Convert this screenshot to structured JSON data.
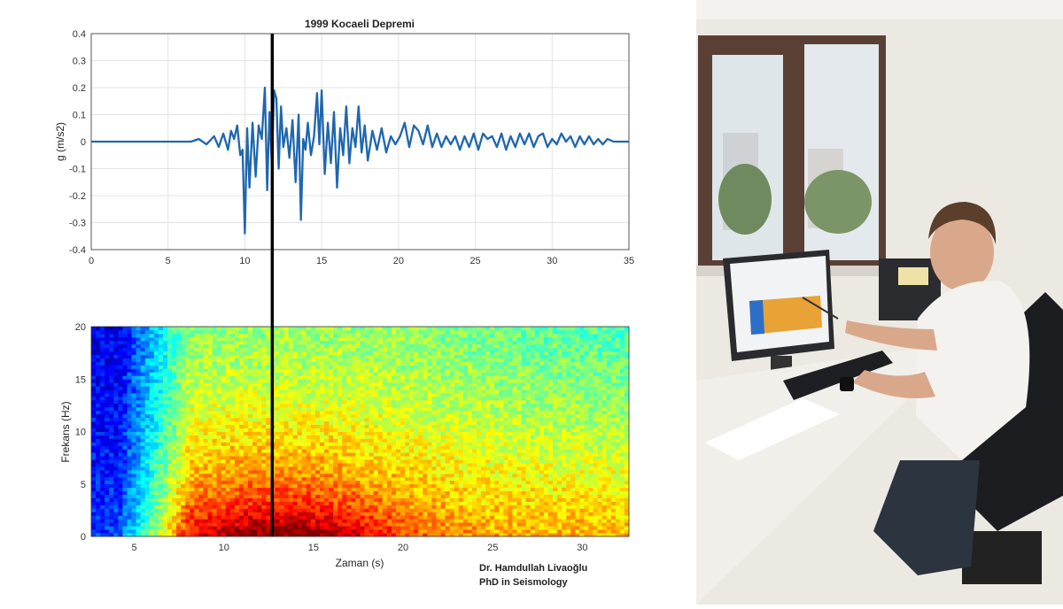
{
  "chart_data": [
    {
      "type": "line",
      "title": "1999 Kocaeli Depremi",
      "xlabel": "",
      "ylabel": "g (m/s2)",
      "xlim": [
        0,
        35
      ],
      "ylim": [
        -0.4,
        0.4
      ],
      "xticks": [
        0,
        5,
        10,
        15,
        20,
        25,
        30,
        35
      ],
      "yticks": [
        -0.4,
        -0.3,
        -0.2,
        -0.1,
        0,
        0.1,
        0.2,
        0.3,
        0.4
      ],
      "grid": true,
      "series": [
        {
          "color": "#1f67ae",
          "x": [
            0,
            6.5,
            7.0,
            7.5,
            8.0,
            8.3,
            8.6,
            8.9,
            9.1,
            9.3,
            9.5,
            9.7,
            9.85,
            10.0,
            10.15,
            10.3,
            10.5,
            10.7,
            10.9,
            11.1,
            11.3,
            11.45,
            11.6,
            11.75,
            11.9,
            12.05,
            12.2,
            12.35,
            12.5,
            12.7,
            12.9,
            13.1,
            13.3,
            13.5,
            13.65,
            13.8,
            13.95,
            14.1,
            14.3,
            14.5,
            14.7,
            14.85,
            15.0,
            15.2,
            15.4,
            15.6,
            15.8,
            16.0,
            16.2,
            16.4,
            16.6,
            16.8,
            17.0,
            17.2,
            17.4,
            17.6,
            17.8,
            18.0,
            18.3,
            18.6,
            18.9,
            19.2,
            19.5,
            19.8,
            20.1,
            20.4,
            20.7,
            21.0,
            21.3,
            21.6,
            21.9,
            22.2,
            22.5,
            22.8,
            23.1,
            23.4,
            23.7,
            24.0,
            24.3,
            24.6,
            24.9,
            25.2,
            25.5,
            25.8,
            26.1,
            26.4,
            26.7,
            27.0,
            27.3,
            27.6,
            27.9,
            28.2,
            28.5,
            28.8,
            29.1,
            29.4,
            29.7,
            30.0,
            30.3,
            30.6,
            30.9,
            31.2,
            31.5,
            31.8,
            32.1,
            32.4,
            32.7,
            33.0,
            33.3,
            33.6,
            34.0,
            34.5,
            35.0
          ],
          "y": [
            0.0,
            0.0,
            0.01,
            -0.01,
            0.02,
            -0.02,
            0.03,
            -0.03,
            0.04,
            0.01,
            0.06,
            -0.05,
            -0.03,
            -0.34,
            0.05,
            -0.17,
            0.07,
            -0.13,
            0.06,
            0.01,
            0.2,
            -0.18,
            0.11,
            -0.08,
            0.19,
            0.16,
            -0.1,
            0.13,
            -0.02,
            0.05,
            -0.06,
            0.08,
            -0.15,
            0.1,
            -0.29,
            0.01,
            -0.03,
            0.07,
            -0.05,
            0.02,
            0.18,
            -0.01,
            0.19,
            -0.12,
            0.07,
            -0.08,
            0.11,
            -0.17,
            0.05,
            -0.05,
            0.13,
            -0.08,
            0.05,
            -0.02,
            0.13,
            -0.04,
            0.06,
            -0.07,
            0.04,
            -0.03,
            0.05,
            -0.04,
            0.02,
            -0.01,
            0.02,
            0.07,
            -0.02,
            0.06,
            0.04,
            -0.01,
            0.06,
            -0.02,
            0.03,
            -0.02,
            0.02,
            -0.01,
            0.02,
            -0.03,
            0.02,
            -0.02,
            0.03,
            -0.03,
            0.03,
            0.01,
            0.02,
            -0.02,
            0.03,
            -0.03,
            0.02,
            -0.02,
            0.03,
            -0.01,
            0.03,
            -0.02,
            0.02,
            0.03,
            -0.02,
            0.01,
            -0.01,
            0.03,
            0.0,
            0.02,
            -0.02,
            0.02,
            -0.01,
            0.02,
            -0.01,
            0.01,
            -0.01,
            0.01,
            0.0,
            0.0,
            0.0
          ]
        }
      ],
      "marker_x": 12.2
    },
    {
      "type": "heatmap",
      "title": "",
      "xlabel": "Zaman (s)",
      "ylabel": "Frekans (Hz)",
      "xlim": [
        2.6,
        32.6
      ],
      "ylim": [
        0,
        20
      ],
      "xticks": [
        5,
        10,
        15,
        20,
        25,
        30
      ],
      "yticks": [
        0,
        5,
        10,
        15,
        20
      ],
      "colormap": "jet",
      "marker_x": 12.7
    }
  ],
  "credit": {
    "line1": "Dr. Hamdullah Livaoğlu",
    "line2": "PhD in Seismology"
  }
}
